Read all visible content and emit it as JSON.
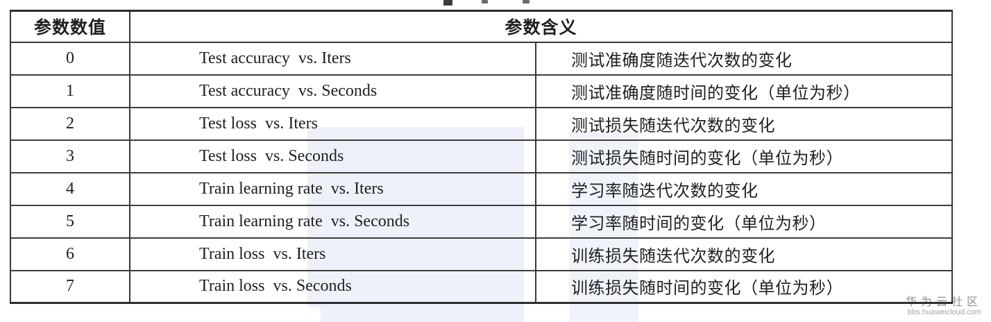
{
  "table": {
    "header": {
      "value_col": "参数数值",
      "meaning_col": "参数含义"
    },
    "rows": [
      {
        "value": "0",
        "english": "Test accuracy  vs. Iters",
        "chinese": "测试准确度随迭代次数的变化"
      },
      {
        "value": "1",
        "english": "Test accuracy  vs. Seconds",
        "chinese": "测试准确度随时间的变化（单位为秒）"
      },
      {
        "value": "2",
        "english": "Test loss  vs. Iters",
        "chinese": "测试损失随迭代次数的变化"
      },
      {
        "value": "3",
        "english": "Test loss  vs. Seconds",
        "chinese": "测试损失随时间的变化（单位为秒）"
      },
      {
        "value": "4",
        "english": "Train learning rate  vs. Iters",
        "chinese": "学习率随迭代次数的变化"
      },
      {
        "value": "5",
        "english": "Train learning rate  vs. Seconds",
        "chinese": "学习率随时间的变化（单位为秒）"
      },
      {
        "value": "6",
        "english": "Train loss  vs. Iters",
        "chinese": "训练损失随迭代次数的变化"
      },
      {
        "value": "7",
        "english": "Train loss  vs. Seconds",
        "chinese": "训练损失随时间的变化（单位为秒）"
      }
    ]
  },
  "watermark": {
    "community": "华为云社区",
    "url": "bbs.huaweicloud.com"
  },
  "colors": {
    "border": "#383838",
    "text": "#1f1f1f",
    "watermark_tint": "#e6eaf6",
    "brand_text": "#8f8f8f"
  }
}
